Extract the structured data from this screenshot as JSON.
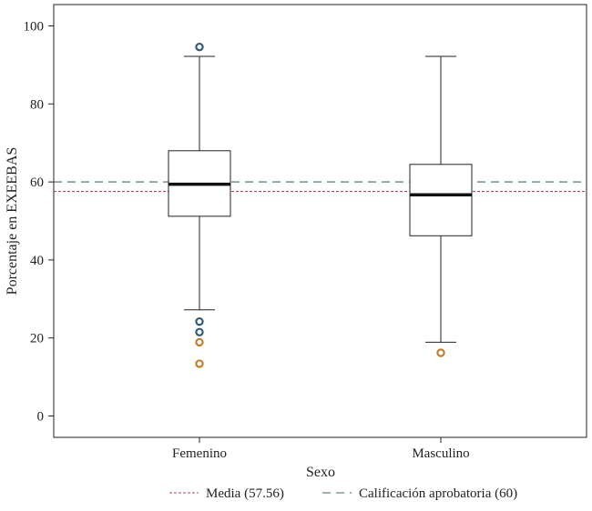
{
  "chart_data": {
    "type": "box",
    "xlabel": "Sexo",
    "ylabel": "Porcentaje en EXEEBAS",
    "ylim": [
      -6,
      106
    ],
    "yticks": [
      0,
      20,
      40,
      60,
      80,
      100
    ],
    "grid": false,
    "categories": [
      "Femenino",
      "Masculino"
    ],
    "boxes": [
      {
        "category": "Femenino",
        "whisker_low": 27.2,
        "q1": 51.2,
        "median": 59.4,
        "q3": 68.0,
        "whisker_high": 92.2,
        "outliers": [
          {
            "value": 94.6,
            "color": "#2f5a78"
          },
          {
            "value": 24.2,
            "color": "#2f5a78"
          },
          {
            "value": 21.5,
            "color": "#2f5a78"
          },
          {
            "value": 18.9,
            "color": "#c47d2b"
          },
          {
            "value": 13.4,
            "color": "#c47d2b"
          }
        ]
      },
      {
        "category": "Masculino",
        "whisker_low": 18.9,
        "q1": 46.2,
        "median": 56.7,
        "q3": 64.5,
        "whisker_high": 92.2,
        "outliers": [
          {
            "value": 16.2,
            "color": "#c47d2b"
          }
        ]
      }
    ],
    "reference_lines": [
      {
        "label": "Media (57.56)",
        "value": 57.56,
        "color": "#b4485e",
        "style": "dotted"
      },
      {
        "label": "Calificación aprobatoria (60)",
        "value": 60,
        "color": "#3f6f6a",
        "style": "dashed"
      }
    ],
    "legend_position": "bottom"
  }
}
